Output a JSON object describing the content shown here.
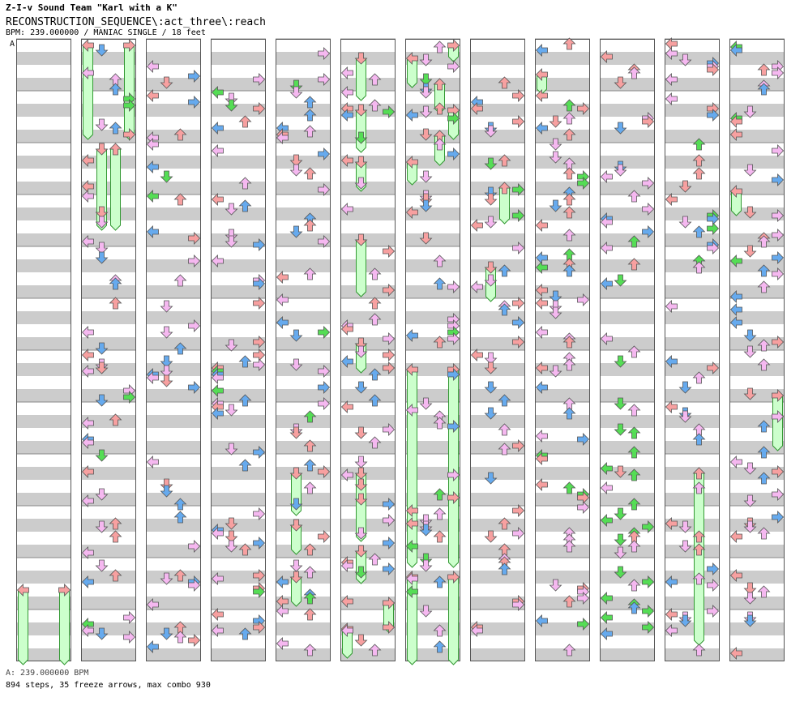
{
  "header": {
    "artist": "Z-I-v Sound Team \"Karl with a K\"",
    "title": "RECONSTRUCTION_SEQUENCE\\:act_three\\:reach",
    "meta": "BPM: 239.000000 / MANIAC SINGLE / 18 feet"
  },
  "bpm_marker": "A",
  "footer": {
    "bpm_line": "A: 239.000000 BPM",
    "stats": "894 steps, 35 freeze arrows, max combo 930"
  },
  "colors": {
    "stripe": "#cccccc",
    "border": "#555555",
    "red": "#f7a0a0",
    "blue": "#66aaee",
    "pink": "#f5b8f0",
    "green": "#55dd55",
    "freeze_fill": "#ccffcc",
    "freeze_border": "#339933"
  },
  "chart_data": {
    "type": "table",
    "columns": 12,
    "measures_per_column": 12
  }
}
